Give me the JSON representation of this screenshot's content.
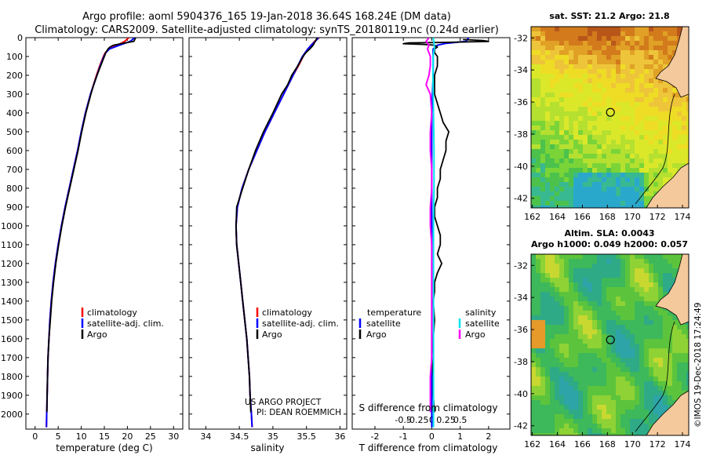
{
  "title_line1": "Argo profile: aoml 5904376_165 19-Jan-2018 36.64S 168.24E (DM data)",
  "title_line2": "Climatology: CARS2009. Satellite-adjusted climatology: synTS_20180119.nc (0.24d earlier)",
  "depth_ticks": [
    0,
    100,
    200,
    300,
    400,
    500,
    600,
    700,
    800,
    900,
    1000,
    1100,
    1200,
    1300,
    1400,
    1500,
    1600,
    1700,
    1800,
    1900,
    2000
  ],
  "depth_range": [
    0,
    2080
  ],
  "colors": {
    "climatology": "#ff0000",
    "satellite": "#0000ff",
    "argo": "#000000",
    "sat_salinity": "#00e5ee",
    "argo_salinity": "#ff00ff",
    "coast": "#f4c99c"
  },
  "chart_data": [
    {
      "type": "line",
      "id": "temperature",
      "xlabel": "temperature (deg C)",
      "xlim": [
        -2,
        32
      ],
      "xticks": [
        0,
        5,
        10,
        15,
        20,
        25,
        30
      ],
      "xtick_labels": [
        "0",
        "5",
        "10",
        "15",
        "20",
        "25",
        "30"
      ],
      "legend": [
        "climatology",
        "satellite-adj. clim.",
        "Argo"
      ],
      "series": [
        {
          "name": "climatology",
          "depth": [
            0,
            20,
            40,
            60,
            80,
            100,
            150,
            200,
            300,
            400,
            500,
            600,
            700,
            800,
            900,
            1000,
            1100,
            1200,
            1300,
            1400,
            1500,
            1600,
            1700,
            1800,
            1900,
            2000,
            2070
          ],
          "values": [
            20.3,
            19.4,
            17.8,
            16.0,
            15.2,
            14.8,
            14.0,
            13.3,
            12.0,
            10.9,
            10.0,
            9.2,
            8.3,
            7.4,
            6.5,
            5.7,
            5.0,
            4.4,
            3.9,
            3.5,
            3.2,
            3.0,
            2.8,
            2.7,
            2.6,
            2.5,
            2.45
          ]
        },
        {
          "name": "satellite-adj. clim.",
          "depth": [
            0,
            20,
            40,
            60,
            80,
            100,
            150,
            200,
            300,
            400,
            500,
            600,
            700,
            800,
            900,
            1000,
            1100,
            1200,
            1300,
            1400,
            1500,
            1600,
            1700,
            1800,
            1900,
            2000,
            2070
          ],
          "values": [
            21.6,
            20.6,
            18.3,
            16.1,
            15.3,
            14.9,
            14.1,
            13.4,
            12.0,
            10.9,
            10.0,
            9.2,
            8.3,
            7.4,
            6.5,
            5.7,
            5.0,
            4.4,
            3.9,
            3.5,
            3.2,
            3.0,
            2.8,
            2.7,
            2.6,
            2.5,
            2.45
          ]
        },
        {
          "name": "Argo",
          "depth": [
            0,
            10,
            20,
            30,
            40,
            50,
            60,
            80,
            100,
            150,
            200,
            250,
            300,
            400,
            500,
            600,
            700,
            800,
            900,
            1000,
            1100,
            1200,
            1300,
            1400,
            1500,
            1600,
            1700,
            1800,
            1900,
            1990
          ],
          "values": [
            21.8,
            21.6,
            21.4,
            19.0,
            17.0,
            16.2,
            15.8,
            15.3,
            15.0,
            14.2,
            13.4,
            12.7,
            12.1,
            11.0,
            10.1,
            9.3,
            8.4,
            7.5,
            6.6,
            5.8,
            5.1,
            4.5,
            4.0,
            3.6,
            3.3,
            3.0,
            2.8,
            2.7,
            2.6,
            2.55
          ]
        }
      ]
    },
    {
      "type": "line",
      "id": "salinity",
      "xlabel": "salinity",
      "xlim": [
        33.75,
        36.1
      ],
      "xticks": [
        34,
        34.5,
        35,
        35.5,
        36
      ],
      "xtick_labels": [
        "34",
        "34.5",
        "35",
        "35.5",
        "36"
      ],
      "legend": [
        "climatology",
        "satellite-adj. clim.",
        "Argo"
      ],
      "annotations": [
        "US ARGO PROJECT",
        "PI: DEAN ROEMMICH"
      ],
      "series": [
        {
          "name": "climatology",
          "depth": [
            0,
            20,
            40,
            60,
            80,
            100,
            150,
            200,
            300,
            400,
            500,
            600,
            700,
            800,
            900,
            1000,
            1100,
            1200,
            1300,
            1400,
            1500,
            1600,
            1700,
            1800,
            1900,
            2000,
            2070
          ],
          "values": [
            35.69,
            35.62,
            35.57,
            35.52,
            35.48,
            35.45,
            35.38,
            35.3,
            35.16,
            35.02,
            34.88,
            34.76,
            34.64,
            34.54,
            34.47,
            34.45,
            34.46,
            34.49,
            34.52,
            34.55,
            34.58,
            34.61,
            34.63,
            34.65,
            34.66,
            34.68,
            34.69
          ]
        },
        {
          "name": "satellite-adj. clim.",
          "depth": [
            0,
            20,
            40,
            60,
            80,
            100,
            150,
            200,
            300,
            400,
            500,
            600,
            700,
            800,
            900,
            1000,
            1100,
            1200,
            1300,
            1400,
            1500,
            1600,
            1700,
            1800,
            1900,
            2000,
            2070
          ],
          "values": [
            35.68,
            35.63,
            35.57,
            35.52,
            35.48,
            35.44,
            35.37,
            35.3,
            35.16,
            35.02,
            34.88,
            34.76,
            34.64,
            34.54,
            34.47,
            34.45,
            34.46,
            34.49,
            34.52,
            34.55,
            34.58,
            34.61,
            34.63,
            34.65,
            34.66,
            34.68,
            34.69
          ]
        },
        {
          "name": "Argo",
          "depth": [
            0,
            20,
            40,
            60,
            80,
            100,
            150,
            200,
            250,
            300,
            400,
            500,
            600,
            700,
            800,
            900,
            1000,
            1100,
            1200,
            1300,
            1400,
            1500,
            1600,
            1700,
            1800,
            1900,
            1990
          ],
          "values": [
            35.66,
            35.63,
            35.6,
            35.55,
            35.49,
            35.45,
            35.37,
            35.28,
            35.22,
            35.13,
            35.0,
            34.86,
            34.74,
            34.64,
            34.55,
            34.46,
            34.45,
            34.46,
            34.49,
            34.52,
            34.55,
            34.58,
            34.61,
            34.63,
            34.65,
            34.66,
            34.67
          ]
        }
      ]
    },
    {
      "type": "line",
      "id": "difference",
      "xlabel": "T difference from climatology",
      "xlabel2": "S difference from climatology",
      "xlim": [
        -2.8,
        2.75
      ],
      "xticks": [
        -2,
        -1,
        0,
        1,
        2
      ],
      "xtick_labels": [
        "-2",
        "-1",
        "0",
        "1",
        "2"
      ],
      "xticks2_positions": [
        -1.0,
        -0.5,
        0.0,
        0.5,
        1.0
      ],
      "xticks2_labels": [
        "-0.5",
        "-0.25",
        "0",
        "0.25",
        "0.5"
      ],
      "legend_left_title": "temperature",
      "legend_right_title": "salinity",
      "legend_left": [
        "satellite",
        "Argo"
      ],
      "legend_right": [
        "satellite",
        "Argo"
      ],
      "series": [
        {
          "name": "T satellite",
          "depth": [
            0,
            20,
            30,
            40,
            60,
            100,
            200,
            400,
            600,
            800,
            1000,
            1200,
            1400,
            1600,
            1800,
            2000,
            2070
          ],
          "values": [
            1.3,
            1.2,
            0.5,
            0.2,
            0.05,
            0.05,
            0.05,
            0.0,
            0.0,
            0.0,
            0.0,
            0.0,
            0.0,
            0.0,
            0.0,
            0.0,
            0.0
          ]
        },
        {
          "name": "T Argo",
          "depth": [
            10,
            15,
            20,
            25,
            28,
            32,
            36,
            40,
            50,
            60,
            80,
            100,
            150,
            200,
            250,
            300,
            350,
            400,
            450,
            500,
            550,
            600,
            650,
            700,
            750,
            800,
            850,
            900,
            950,
            1000,
            1050,
            1100,
            1150,
            1200,
            1250,
            1300,
            1350,
            1400,
            1500,
            1600,
            1700,
            1800,
            1900,
            1990
          ],
          "values": [
            1.1,
            1.8,
            2.0,
            0.5,
            -0.8,
            -1.0,
            -0.3,
            0.1,
            0.2,
            0.1,
            0.1,
            0.2,
            0.2,
            0.1,
            0.1,
            0.1,
            0.2,
            0.3,
            0.4,
            0.6,
            0.5,
            0.5,
            0.4,
            0.3,
            0.3,
            0.2,
            0.2,
            0.1,
            0.1,
            0.2,
            0.3,
            0.3,
            0.2,
            0.35,
            0.2,
            0.1,
            0.1,
            0.05,
            0.1,
            0.05,
            0.0,
            0.05,
            0.05,
            0.1
          ]
        },
        {
          "name": "S satellite",
          "depth": [
            0,
            50,
            100,
            200,
            400,
            600,
            800,
            1000,
            1200,
            1400,
            1600,
            1800,
            2000,
            2070
          ],
          "values": [
            0.05,
            0.1,
            0.05,
            0.04,
            0.06,
            0.08,
            0.08,
            0.06,
            0.06,
            0.06,
            0.06,
            0.06,
            0.06,
            0.06
          ]
        },
        {
          "name": "S Argo",
          "depth": [
            0,
            20,
            40,
            60,
            100,
            150,
            200,
            250,
            300,
            400,
            500,
            600,
            700,
            800,
            900,
            1000,
            1100,
            1200,
            1300,
            1400,
            1500,
            1600,
            1700,
            1800,
            1900,
            1990
          ],
          "values": [
            -0.1,
            -0.2,
            -0.1,
            -0.15,
            -0.05,
            -0.05,
            -0.1,
            -0.2,
            -0.05,
            0.0,
            -0.05,
            -0.05,
            0.0,
            0.0,
            -0.05,
            -0.05,
            0.0,
            0.0,
            0.0,
            0.0,
            0.0,
            0.0,
            0.0,
            -0.05,
            -0.05,
            -0.05
          ]
        }
      ]
    }
  ],
  "legend_labels": {
    "climatology": "climatology",
    "satellite_adj": "satellite-adj. clim.",
    "argo": "Argo",
    "satellite": "satellite",
    "temperature": "temperature",
    "salinity": "salinity"
  },
  "map_sst": {
    "title": "sat. SST: 21.2 Argo: 21.8",
    "lon_ticks": [
      "162",
      "164",
      "166",
      "168",
      "170",
      "172",
      "174"
    ],
    "lat_ticks": [
      "-32",
      "-34",
      "-36",
      "-38",
      "-40",
      "-42"
    ],
    "profile_lon": 168.24,
    "profile_lat": -36.64
  },
  "map_sla": {
    "title1": "Altim. SLA: 0.0043",
    "title2": "Argo h1000: 0.049 h2000: 0.057",
    "lon_ticks": [
      "162",
      "164",
      "166",
      "168",
      "170",
      "172",
      "174"
    ],
    "lat_ticks": [
      "-32",
      "-34",
      "-36",
      "-38",
      "-40",
      "-42"
    ],
    "profile_lon": 168.24,
    "profile_lat": -36.64
  },
  "watermark": "©IMOS 19-Dec-2018 17:24:49"
}
